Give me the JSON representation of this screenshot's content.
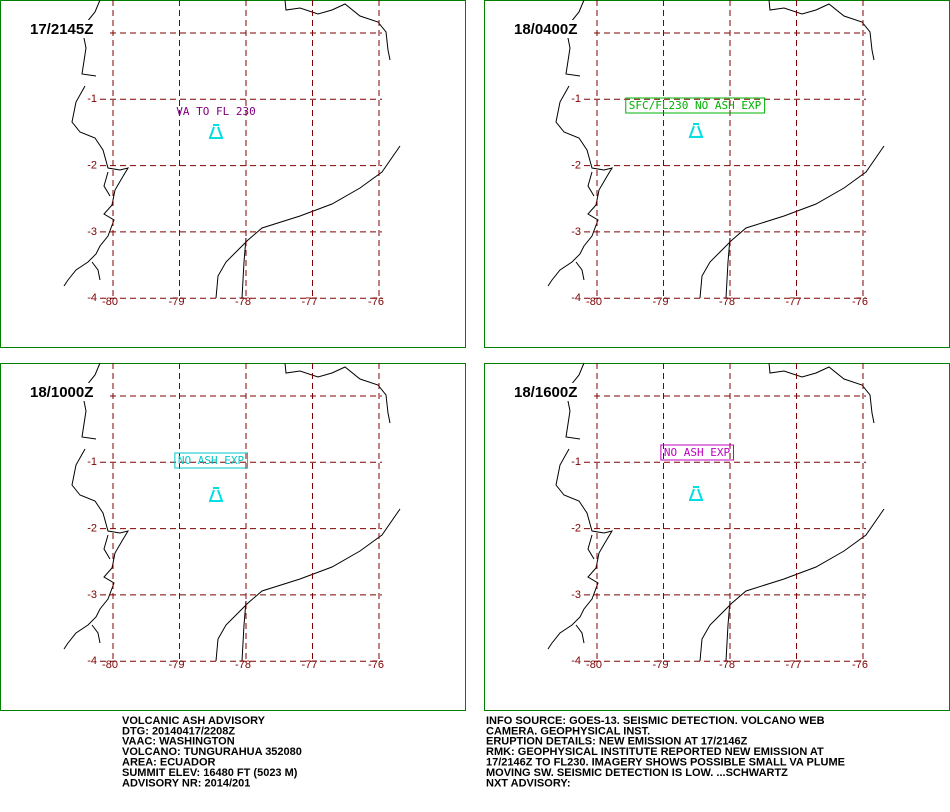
{
  "panels": [
    {
      "time": "17/2145Z",
      "annotation": "VA TO FL 230",
      "annotation_color": "#800080",
      "boxed": false
    },
    {
      "time": "18/0400Z",
      "annotation": "SFC/FL230 NO ASH EXP",
      "annotation_color": "#00b000",
      "boxed": true
    },
    {
      "time": "18/1000Z",
      "annotation": "NO ASH EXP",
      "annotation_color": "#00c8c8",
      "boxed": true
    },
    {
      "time": "18/1600Z",
      "annotation": "NO ASH EXP",
      "annotation_color": "#c000c0",
      "boxed": true
    }
  ],
  "lat_labels": [
    -1,
    -2,
    -3,
    -4
  ],
  "lon_labels": [
    -80,
    -79,
    -78,
    -77,
    -76
  ],
  "advisory_left": [
    "VOLCANIC ASH ADVISORY",
    "DTG: 20140417/2208Z",
    "VAAC: WASHINGTON",
    "VOLCANO: TUNGURAHUA 352080",
    "AREA: ECUADOR",
    "SUMMIT ELEV: 16480 FT (5023 M)",
    "ADVISORY NR: 2014/201"
  ],
  "advisory_right": [
    "INFO SOURCE: GOES-13. SEISMIC DETECTION. VOLCANO WEB",
    "CAMERA. GEOPHYSICAL INST.",
    "ERUPTION DETAILS: NEW EMISSION AT 17/2146Z",
    "RMK: GEOPHYSICAL INSTITUTE REPORTED NEW EMISSION AT",
    "17/2146Z TO FL230. IMAGERY SHOWS POSSIBLE SMALL VA PLUME",
    "MOVING SW. SEISMIC DETECTION IS LOW. ...SCHWARTZ",
    "NXT ADVISORY:"
  ]
}
